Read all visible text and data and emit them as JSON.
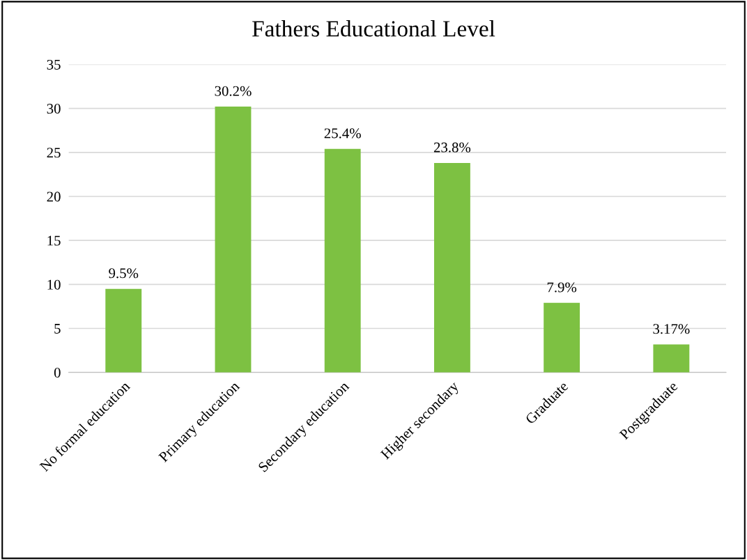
{
  "chart_data": {
    "type": "bar",
    "title": "Fathers Educational Level",
    "categories": [
      "No formal education",
      "Primary education",
      "Secondary education",
      "Higher secondary",
      "Graduate",
      "Postgraduate"
    ],
    "values": [
      9.5,
      30.2,
      25.4,
      23.8,
      7.9,
      3.17
    ],
    "value_labels": [
      "9.5%",
      "30.2%",
      "25.4%",
      "23.8%",
      "7.9%",
      "3.17%"
    ],
    "color": "#7dc142",
    "ylim": [
      0,
      35
    ],
    "yticks": [
      0,
      5,
      10,
      15,
      20,
      25,
      30,
      35
    ],
    "grid": "y",
    "legend": false
  }
}
